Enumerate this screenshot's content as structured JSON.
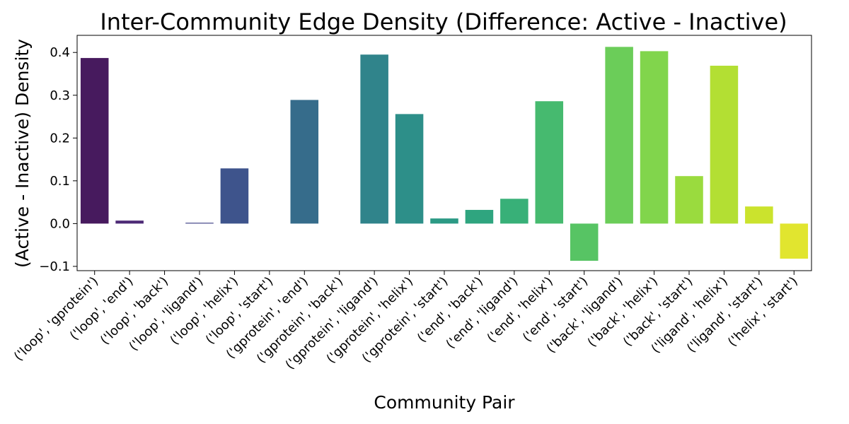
{
  "chart_data": {
    "type": "bar",
    "title": "Inter-Community Edge Density (Difference: Active - Inactive)",
    "xlabel": "Community Pair",
    "ylabel": "(Active - Inactive) Density",
    "ylim": [
      -0.11,
      0.44
    ],
    "yticks": [
      -0.1,
      0.0,
      0.1,
      0.2,
      0.3,
      0.4
    ],
    "ytick_labels": [
      "−0.1",
      "0.0",
      "0.1",
      "0.2",
      "0.3",
      "0.4"
    ],
    "grid": false,
    "categories": [
      "('loop', 'gprotein')",
      "('loop', 'end')",
      "('loop', 'back')",
      "('loop', 'ligand')",
      "('loop', 'helix')",
      "('loop', 'start')",
      "('gprotein', 'end')",
      "('gprotein', 'back')",
      "('gprotein', 'ligand')",
      "('gprotein', 'helix')",
      "('gprotein', 'start')",
      "('end', 'back')",
      "('end', 'ligand')",
      "('end', 'helix')",
      "('end', 'start')",
      "('back', 'ligand')",
      "('back', 'helix')",
      "('back', 'start')",
      "('ligand', 'helix')",
      "('ligand', 'start')",
      "('helix', 'start')"
    ],
    "values": [
      0.387,
      0.007,
      0.0,
      0.002,
      0.129,
      0.0,
      0.289,
      0.0,
      0.395,
      0.256,
      0.012,
      0.032,
      0.058,
      0.286,
      -0.087,
      0.413,
      0.403,
      0.111,
      0.369,
      0.04,
      -0.082
    ],
    "colors": [
      "#471a5e",
      "#4d2a76",
      "#4b3a84",
      "#44478a",
      "#3e548c",
      "#3a608c",
      "#366c8b",
      "#33788b",
      "#30848b",
      "#2d8f89",
      "#2c9a85",
      "#2fa57f",
      "#38b078",
      "#46ba6f",
      "#57c464",
      "#6bcd59",
      "#81d54c",
      "#9adb3e",
      "#b3df33",
      "#cbe32d",
      "#e1e52f"
    ]
  }
}
